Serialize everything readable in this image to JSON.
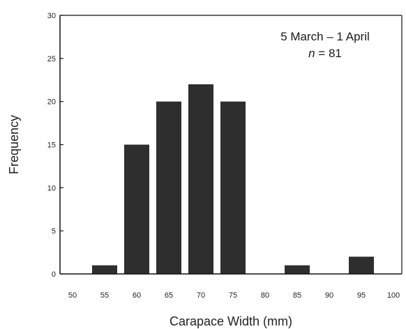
{
  "chart_data": {
    "type": "bar",
    "categories": [
      "50",
      "55",
      "60",
      "65",
      "70",
      "75",
      "80",
      "85",
      "90",
      "95",
      "100"
    ],
    "values": [
      0,
      1,
      15,
      20,
      22,
      20,
      0,
      1,
      0,
      2,
      0
    ],
    "xlabel": "Carapace Width (mm)",
    "ylabel": "Frequency",
    "ylim": [
      0,
      30
    ],
    "yticks": [
      0,
      5,
      10,
      15,
      20,
      25,
      30
    ],
    "grid": false,
    "legend": "none",
    "annotation": {
      "line1": "5 March – 1 April",
      "n_symbol": "n",
      "n_rest": " = 81",
      "placement": "top-right"
    },
    "colors": {
      "bar": "#2e2e2e",
      "axis": "#111111",
      "text": "#222222"
    }
  }
}
